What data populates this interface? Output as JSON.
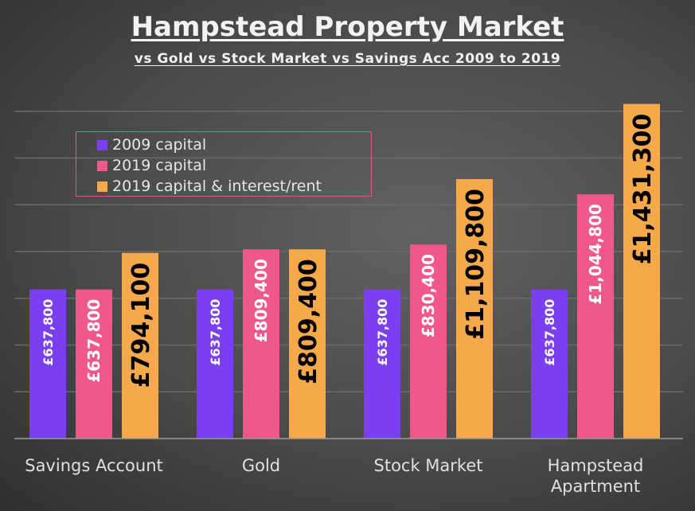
{
  "chart_data": {
    "type": "bar",
    "title": "Hampstead Property Market",
    "subtitle": "vs Gold vs Stock Market vs Savings Acc 2009 to 2019",
    "categories": [
      "Savings Account",
      "Gold",
      "Stock Market",
      "Hampstead Apartment"
    ],
    "series": [
      {
        "name": "2009 capital",
        "color": "#7b3ff2",
        "values": [
          637800,
          637800,
          637800,
          637800
        ],
        "labels": [
          "£637,800",
          "£637,800",
          "£637,800",
          "£637,800"
        ]
      },
      {
        "name": "2019 capital",
        "color": "#f0578a",
        "values": [
          637800,
          809400,
          830400,
          1044800
        ],
        "labels": [
          "£637,800",
          "£809,400",
          "£830,400",
          "£1,044,800"
        ]
      },
      {
        "name": "2019 capital & interest/rent",
        "color": "#f5a94a",
        "values": [
          794100,
          809400,
          1109800,
          1431300
        ],
        "labels": [
          "£794,100",
          "£809,400",
          "£1,109,800",
          "£1,431,300"
        ]
      }
    ],
    "xlabel": "",
    "ylabel": "",
    "ylim": [
      0,
      1600000
    ],
    "grid": true,
    "legend_position": "top-left"
  }
}
